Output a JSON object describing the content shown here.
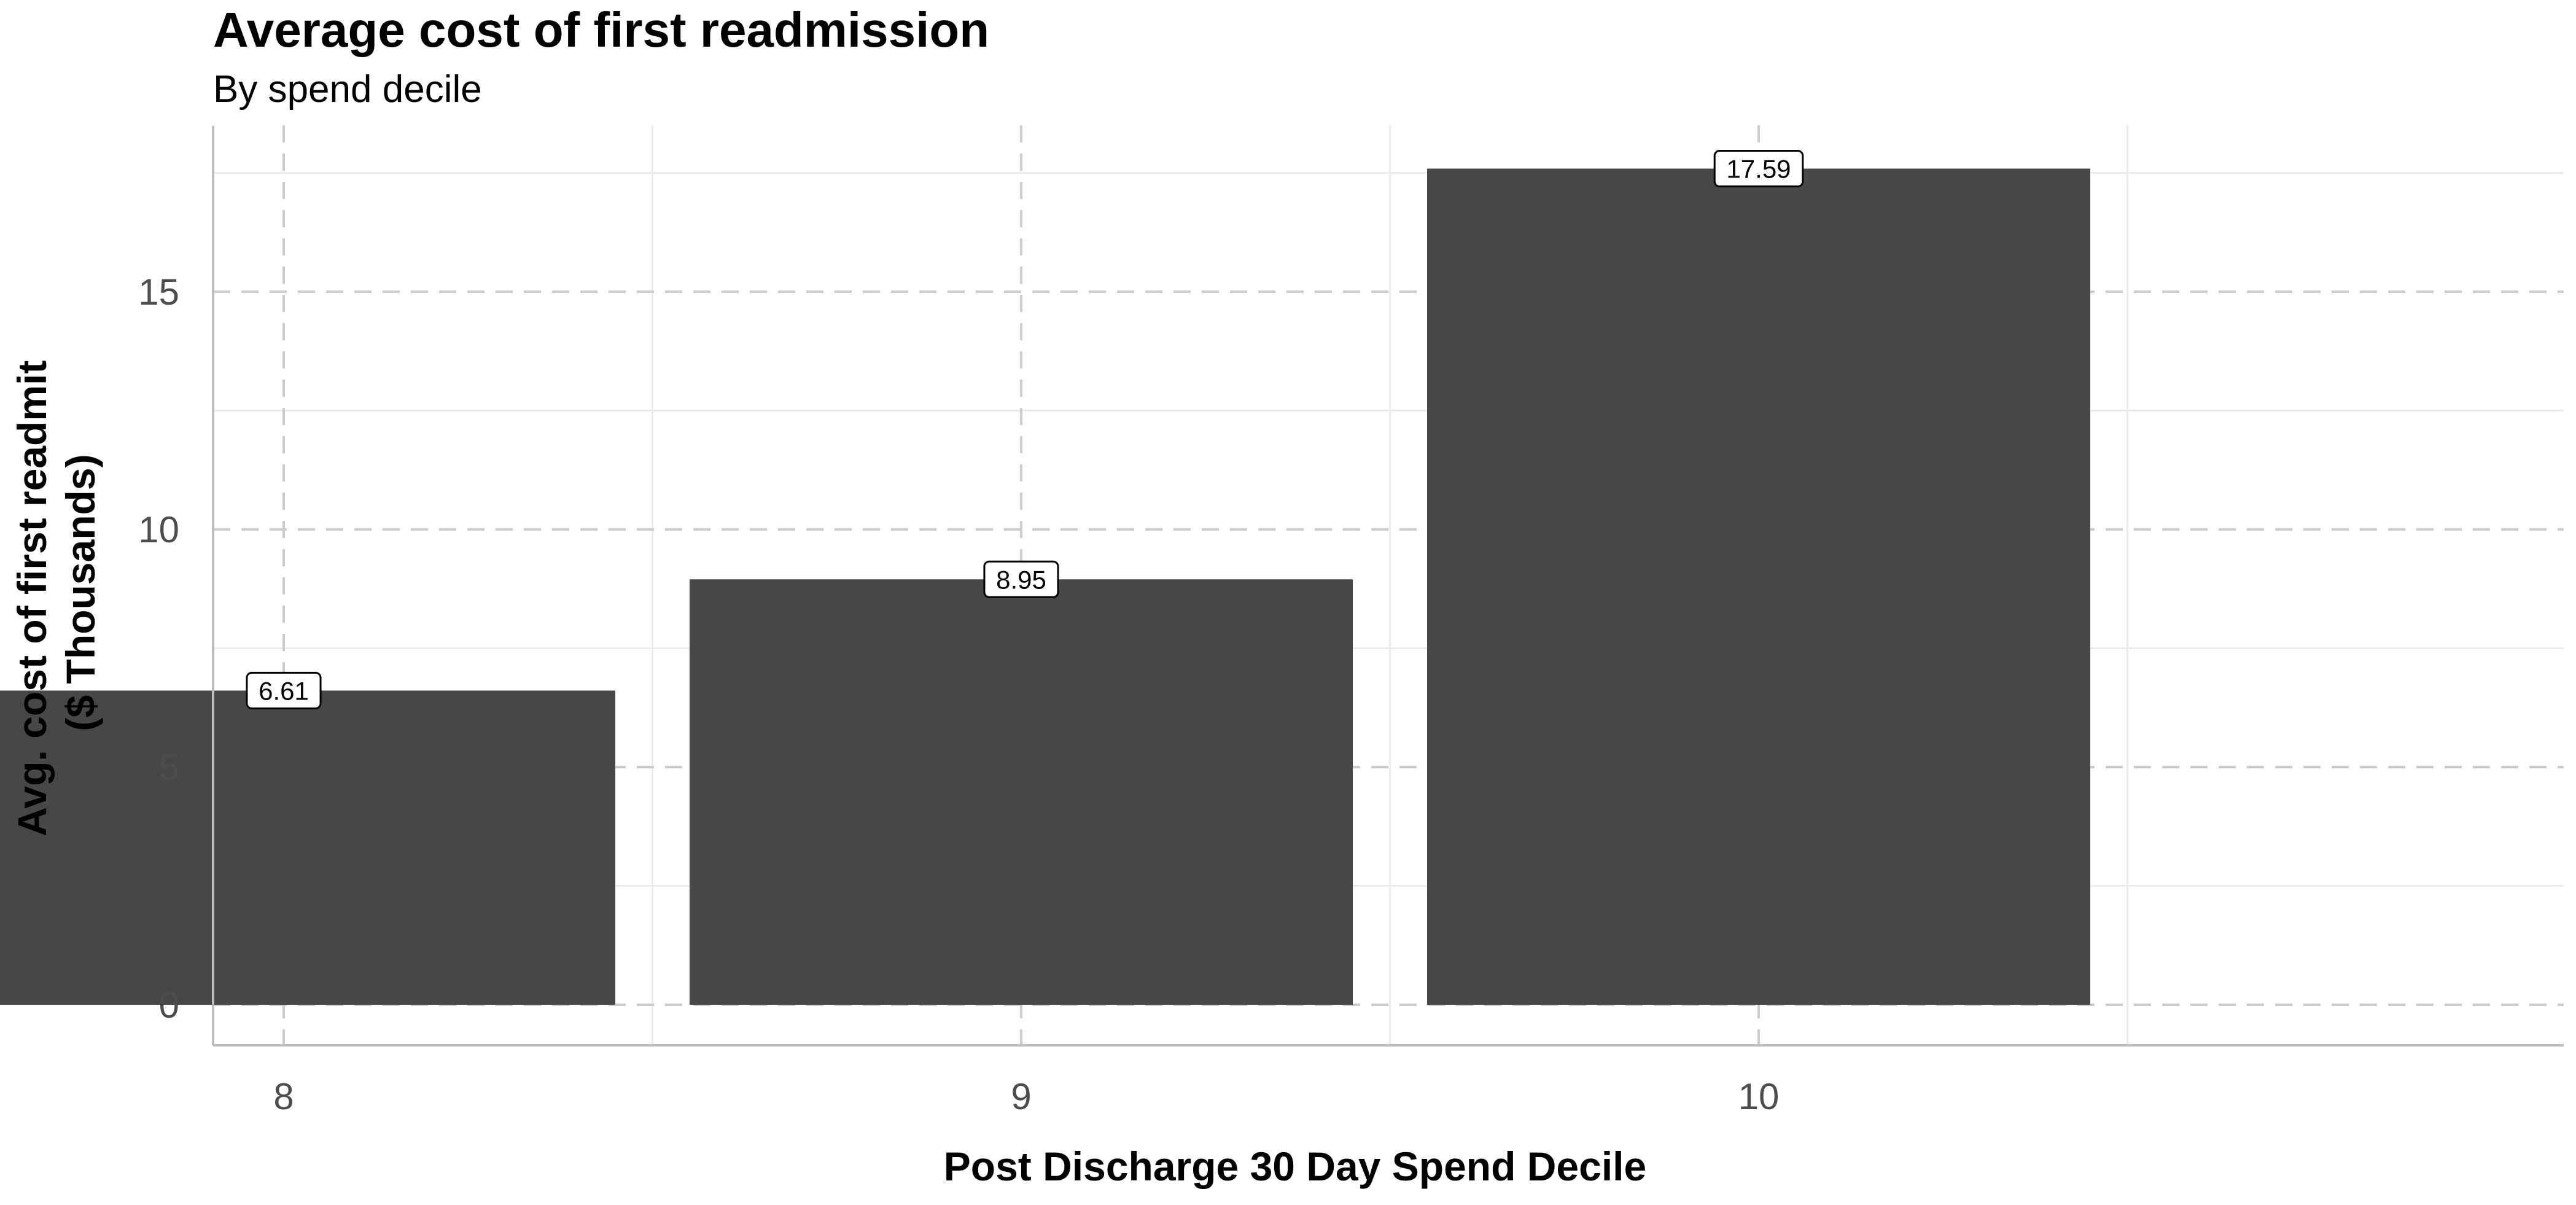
{
  "chart_data": {
    "type": "bar",
    "title": "Average cost of first readmission",
    "subtitle": "By spend decile",
    "xlabel": "Post Discharge 30 Day Spend Decile",
    "ylabel_lines": [
      "Avg. cost of first readmit",
      "($ Thousands)"
    ],
    "categories": [
      "8",
      "9",
      "10"
    ],
    "values": [
      6.61,
      8.95,
      17.59
    ],
    "data_labels": [
      "6.61",
      "8.95",
      "17.59"
    ],
    "ylim": [
      -0.88,
      18.5
    ],
    "yticks": [
      0,
      5,
      10,
      15
    ],
    "ytick_labels": [
      "0",
      "5",
      "10",
      "15"
    ],
    "grid": true,
    "legend": "none",
    "colors": {
      "bar": "#474747",
      "major_grid": "#cccccc",
      "minor_grid": "#ebebeb",
      "axis_line": "#bdbdbd"
    }
  }
}
